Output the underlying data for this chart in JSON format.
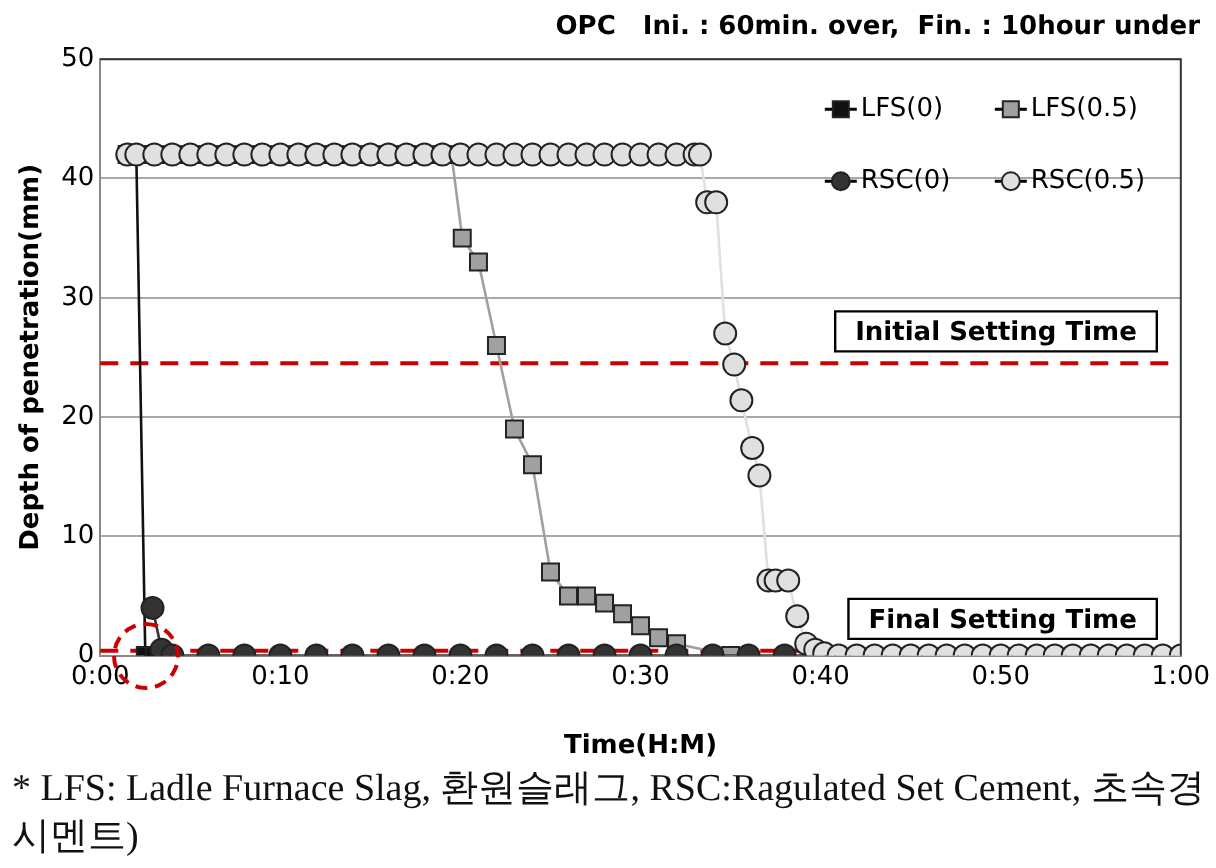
{
  "chart_data": {
    "type": "line",
    "title": "OPC   Ini. : 60min. over,  Fin. : 10hour under",
    "xlabel": "Time(H:M)",
    "ylabel": "Depth of penetration(mm)",
    "xlim": [
      0,
      60
    ],
    "xticks": [
      {
        "value": 0,
        "label": "0:00"
      },
      {
        "value": 10,
        "label": "0:10"
      },
      {
        "value": 20,
        "label": "0:20"
      },
      {
        "value": 30,
        "label": "0:30"
      },
      {
        "value": 40,
        "label": "0:40"
      },
      {
        "value": 50,
        "label": "0:50"
      },
      {
        "value": 60,
        "label": "1:00"
      }
    ],
    "ylim": [
      0,
      50
    ],
    "yticks": [
      0,
      10,
      20,
      30,
      40,
      50
    ],
    "grid": "y",
    "legend": "top right",
    "series": [
      {
        "name": "LFS(0)",
        "color": "#111111",
        "marker": "square",
        "x": [
          1.5,
          2,
          2.5,
          3
        ],
        "values": [
          42,
          42,
          0,
          0
        ]
      },
      {
        "name": "LFS(0.5)",
        "color": "#a0a0a0",
        "marker": "square",
        "x": [
          1.5,
          2,
          3,
          4,
          5,
          6,
          7,
          8,
          9,
          10,
          11,
          12,
          13,
          14,
          15,
          16,
          17,
          18,
          19,
          19.5,
          20.1,
          21,
          22,
          23,
          24,
          25,
          26,
          27,
          28,
          29,
          30,
          31,
          32,
          35
        ],
        "values": [
          42,
          42,
          42,
          42,
          42,
          42,
          42,
          42,
          42,
          42,
          42,
          42,
          42,
          42,
          42,
          42,
          42,
          42,
          42,
          42,
          35,
          33,
          26,
          19,
          16,
          7,
          5,
          5,
          4.4,
          3.5,
          2.5,
          1.5,
          1,
          0
        ]
      },
      {
        "name": "RSC(0)",
        "color": "#333333",
        "marker": "circle",
        "x": [
          2.9,
          3.4,
          4,
          6,
          8,
          10,
          12,
          14,
          16,
          18,
          20,
          22,
          24,
          26,
          28,
          30,
          32,
          34,
          36,
          38,
          40
        ],
        "values": [
          4,
          0.5,
          0,
          0,
          0,
          0,
          0,
          0,
          0,
          0,
          0,
          0,
          0,
          0,
          0,
          0,
          0,
          0,
          0,
          0,
          0
        ]
      },
      {
        "name": "RSC(0.5)",
        "color": "#e0e0e0",
        "marker": "circle",
        "x": [
          1.5,
          2,
          3,
          4,
          5,
          6,
          7,
          8,
          9,
          10,
          11,
          12,
          13,
          14,
          15,
          16,
          17,
          18,
          19,
          20,
          21,
          22,
          23,
          24,
          25,
          26,
          27,
          28,
          29,
          30,
          31,
          32,
          33,
          33.3,
          33.7,
          34.2,
          34.7,
          35.2,
          35.6,
          36.2,
          36.6,
          37.1,
          37.5,
          38.2,
          38.7,
          39.2,
          39.7,
          40.2,
          41,
          42,
          43,
          44,
          45,
          46,
          47,
          48,
          49,
          50,
          51,
          52,
          53,
          54,
          55,
          56,
          57,
          58,
          59,
          60
        ],
        "values": [
          42,
          42,
          42,
          42,
          42,
          42,
          42,
          42,
          42,
          42,
          42,
          42,
          42,
          42,
          42,
          42,
          42,
          42,
          42,
          42,
          42,
          42,
          42,
          42,
          42,
          42,
          42,
          42,
          42,
          42,
          42,
          42,
          42,
          42,
          38,
          38,
          27,
          24.4,
          21.4,
          17.4,
          15.1,
          6.3,
          6.3,
          6.3,
          3.3,
          1,
          0.5,
          0.2,
          0,
          0,
          0,
          0,
          0,
          0,
          0,
          0,
          0,
          0,
          0,
          0,
          0,
          0,
          0,
          0,
          0,
          0,
          0,
          0
        ]
      }
    ],
    "ref_lines": [
      {
        "axis": "y",
        "value": 24.5,
        "label": "Initial Setting Time",
        "color": "#cc0000",
        "line_style": "dashed"
      },
      {
        "axis": "y",
        "value": 0.4,
        "label": "Final Setting Time",
        "color": "#cc0000",
        "line_style": "dashed"
      }
    ],
    "annotations": [
      "* LFS: Ladle Furnace Slag, 환원슬래그, RSC:Ragulated Set Cement, 초속경 시멘트)"
    ]
  }
}
